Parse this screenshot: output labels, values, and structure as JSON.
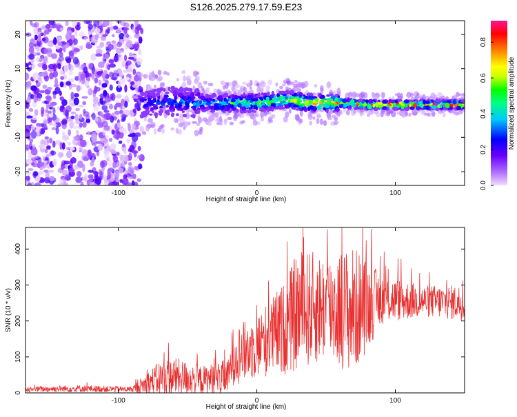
{
  "title": "S126.2025.279.17.59.E23",
  "chart_data": [
    {
      "type": "heatmap",
      "xlabel": "Height of straight line (km)",
      "ylabel": "Frequency (Hz)",
      "xlim": [
        -167,
        150
      ],
      "ylim": [
        -24,
        24
      ],
      "xticks": [
        -100,
        0,
        100
      ],
      "yticks": [
        -20,
        -10,
        0,
        10,
        20
      ],
      "colorbar": {
        "label": "Normalized spectral amplitude",
        "range": [
          0.0,
          0.92
        ],
        "ticks": [
          0.0,
          0.2,
          0.4,
          0.6,
          0.8
        ],
        "colors": [
          "#f0dcff",
          "#8a2be2",
          "#0000ff",
          "#00c8ff",
          "#00ff80",
          "#00ff00",
          "#c8ff00",
          "#ffff00",
          "#ff8000",
          "#ff0000",
          "#ff1493"
        ]
      },
      "ridge": [
        {
          "x": -80,
          "f": 0.0,
          "amp": 0.3
        },
        {
          "x": -60,
          "f": 0.5,
          "amp": 0.35
        },
        {
          "x": -40,
          "f": 0.0,
          "amp": 0.4
        },
        {
          "x": -20,
          "f": 0.0,
          "amp": 0.55
        },
        {
          "x": 0,
          "f": 0.0,
          "amp": 0.6
        },
        {
          "x": 20,
          "f": 1.0,
          "amp": 0.7
        },
        {
          "x": 40,
          "f": 0.0,
          "amp": 0.8
        },
        {
          "x": 60,
          "f": 0.0,
          "amp": 0.8
        },
        {
          "x": 80,
          "f": -0.5,
          "amp": 0.85
        },
        {
          "x": 100,
          "f": -0.5,
          "amp": 0.9
        },
        {
          "x": 120,
          "f": -0.5,
          "amp": 0.92
        },
        {
          "x": 150,
          "f": -0.5,
          "amp": 0.92
        }
      ]
    },
    {
      "type": "line",
      "xlabel": "Height of straight line (km)",
      "ylabel": "SNR (10 * v/v)",
      "xlim": [
        -167,
        150
      ],
      "ylim": [
        0,
        460
      ],
      "xticks": [
        -100,
        0,
        100
      ],
      "yticks": [
        0,
        100,
        200,
        300,
        400
      ],
      "series": [
        {
          "name": "SNR",
          "color": "#e83030",
          "envelope": [
            {
              "x": -167,
              "base": 10,
              "spread": 8
            },
            {
              "x": -130,
              "base": 12,
              "spread": 10
            },
            {
              "x": -90,
              "base": 10,
              "spread": 8
            },
            {
              "x": -80,
              "base": 25,
              "spread": 30
            },
            {
              "x": -70,
              "base": 40,
              "spread": 50
            },
            {
              "x": -60,
              "base": 45,
              "spread": 55
            },
            {
              "x": -40,
              "base": 35,
              "spread": 40
            },
            {
              "x": -20,
              "base": 45,
              "spread": 50
            },
            {
              "x": -18,
              "base": 100,
              "spread": 80
            },
            {
              "x": 0,
              "base": 130,
              "spread": 90
            },
            {
              "x": 20,
              "base": 180,
              "spread": 130
            },
            {
              "x": 30,
              "base": 230,
              "spread": 170
            },
            {
              "x": 50,
              "base": 240,
              "spread": 150
            },
            {
              "x": 70,
              "base": 230,
              "spread": 180
            },
            {
              "x": 90,
              "base": 260,
              "spread": 70
            },
            {
              "x": 120,
              "base": 255,
              "spread": 45
            },
            {
              "x": 150,
              "base": 250,
              "spread": 50
            }
          ]
        }
      ]
    }
  ]
}
